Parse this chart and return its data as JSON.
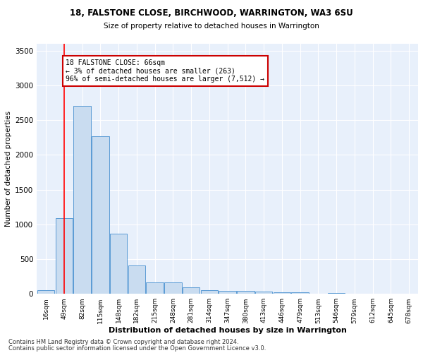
{
  "title1": "18, FALSTONE CLOSE, BIRCHWOOD, WARRINGTON, WA3 6SU",
  "title2": "Size of property relative to detached houses in Warrington",
  "xlabel": "Distribution of detached houses by size in Warrington",
  "ylabel": "Number of detached properties",
  "bin_labels": [
    "16sqm",
    "49sqm",
    "82sqm",
    "115sqm",
    "148sqm",
    "182sqm",
    "215sqm",
    "248sqm",
    "281sqm",
    "314sqm",
    "347sqm",
    "380sqm",
    "413sqm",
    "446sqm",
    "479sqm",
    "513sqm",
    "546sqm",
    "579sqm",
    "612sqm",
    "645sqm",
    "678sqm"
  ],
  "bar_heights": [
    55,
    1090,
    2710,
    2270,
    870,
    410,
    165,
    165,
    90,
    55,
    45,
    40,
    30,
    25,
    20,
    0,
    15,
    0,
    0,
    0,
    0
  ],
  "bar_color": "#c9dcf0",
  "bar_edge_color": "#5b9bd5",
  "red_line_x": 1,
  "annotation_text": "18 FALSTONE CLOSE: 66sqm\n← 3% of detached houses are smaller (263)\n96% of semi-detached houses are larger (7,512) →",
  "annotation_box_color": "#ffffff",
  "annotation_box_edge_color": "#cc0000",
  "ylim": [
    0,
    3600
  ],
  "yticks": [
    0,
    500,
    1000,
    1500,
    2000,
    2500,
    3000,
    3500
  ],
  "bg_color": "#e8f0fb",
  "grid_color": "#ffffff",
  "footer1": "Contains HM Land Registry data © Crown copyright and database right 2024.",
  "footer2": "Contains public sector information licensed under the Open Government Licence v3.0."
}
